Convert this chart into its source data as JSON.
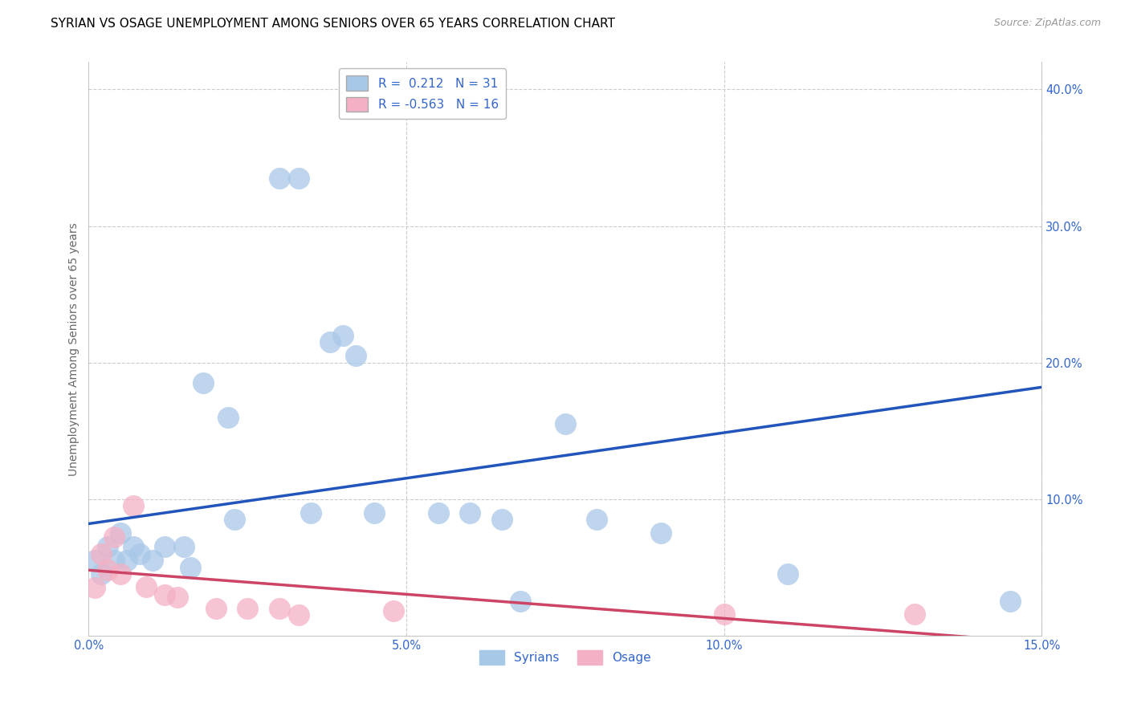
{
  "title": "SYRIAN VS OSAGE UNEMPLOYMENT AMONG SENIORS OVER 65 YEARS CORRELATION CHART",
  "source": "Source: ZipAtlas.com",
  "ylabel": "Unemployment Among Seniors over 65 years",
  "xlim": [
    0.0,
    0.15
  ],
  "ylim": [
    0.0,
    0.42
  ],
  "xtick_labels": [
    "0.0%",
    "",
    "5.0%",
    "",
    "10.0%",
    "",
    "15.0%"
  ],
  "xtick_vals": [
    0.0,
    0.025,
    0.05,
    0.075,
    0.1,
    0.125,
    0.15
  ],
  "ytick_labels": [
    "10.0%",
    "20.0%",
    "30.0%",
    "40.0%"
  ],
  "ytick_vals": [
    0.1,
    0.2,
    0.3,
    0.4
  ],
  "syrian_color": "#a8c8e8",
  "osage_color": "#f4b0c4",
  "syrian_line_color": "#2255bb",
  "osage_line_color": "#cc4466",
  "r_syrian": 0.212,
  "n_syrian": 31,
  "r_osage": -0.563,
  "n_osage": 16,
  "syrian_points": [
    [
      0.001,
      0.055
    ],
    [
      0.002,
      0.045
    ],
    [
      0.003,
      0.065
    ],
    [
      0.004,
      0.055
    ],
    [
      0.005,
      0.075
    ],
    [
      0.006,
      0.055
    ],
    [
      0.007,
      0.065
    ],
    [
      0.008,
      0.06
    ],
    [
      0.01,
      0.055
    ],
    [
      0.012,
      0.065
    ],
    [
      0.015,
      0.065
    ],
    [
      0.016,
      0.05
    ],
    [
      0.018,
      0.185
    ],
    [
      0.022,
      0.16
    ],
    [
      0.023,
      0.085
    ],
    [
      0.03,
      0.335
    ],
    [
      0.033,
      0.335
    ],
    [
      0.035,
      0.09
    ],
    [
      0.038,
      0.215
    ],
    [
      0.04,
      0.22
    ],
    [
      0.042,
      0.205
    ],
    [
      0.045,
      0.09
    ],
    [
      0.055,
      0.09
    ],
    [
      0.06,
      0.09
    ],
    [
      0.065,
      0.085
    ],
    [
      0.068,
      0.025
    ],
    [
      0.075,
      0.155
    ],
    [
      0.08,
      0.085
    ],
    [
      0.09,
      0.075
    ],
    [
      0.11,
      0.045
    ],
    [
      0.145,
      0.025
    ]
  ],
  "osage_points": [
    [
      0.001,
      0.035
    ],
    [
      0.002,
      0.06
    ],
    [
      0.003,
      0.048
    ],
    [
      0.004,
      0.072
    ],
    [
      0.005,
      0.045
    ],
    [
      0.007,
      0.095
    ],
    [
      0.009,
      0.036
    ],
    [
      0.012,
      0.03
    ],
    [
      0.014,
      0.028
    ],
    [
      0.02,
      0.02
    ],
    [
      0.025,
      0.02
    ],
    [
      0.03,
      0.02
    ],
    [
      0.033,
      0.015
    ],
    [
      0.048,
      0.018
    ],
    [
      0.1,
      0.016
    ],
    [
      0.13,
      0.016
    ]
  ],
  "background_color": "#ffffff",
  "grid_color": "#cccccc",
  "title_fontsize": 11,
  "label_fontsize": 10,
  "tick_fontsize": 10.5,
  "legend_fontsize": 11
}
